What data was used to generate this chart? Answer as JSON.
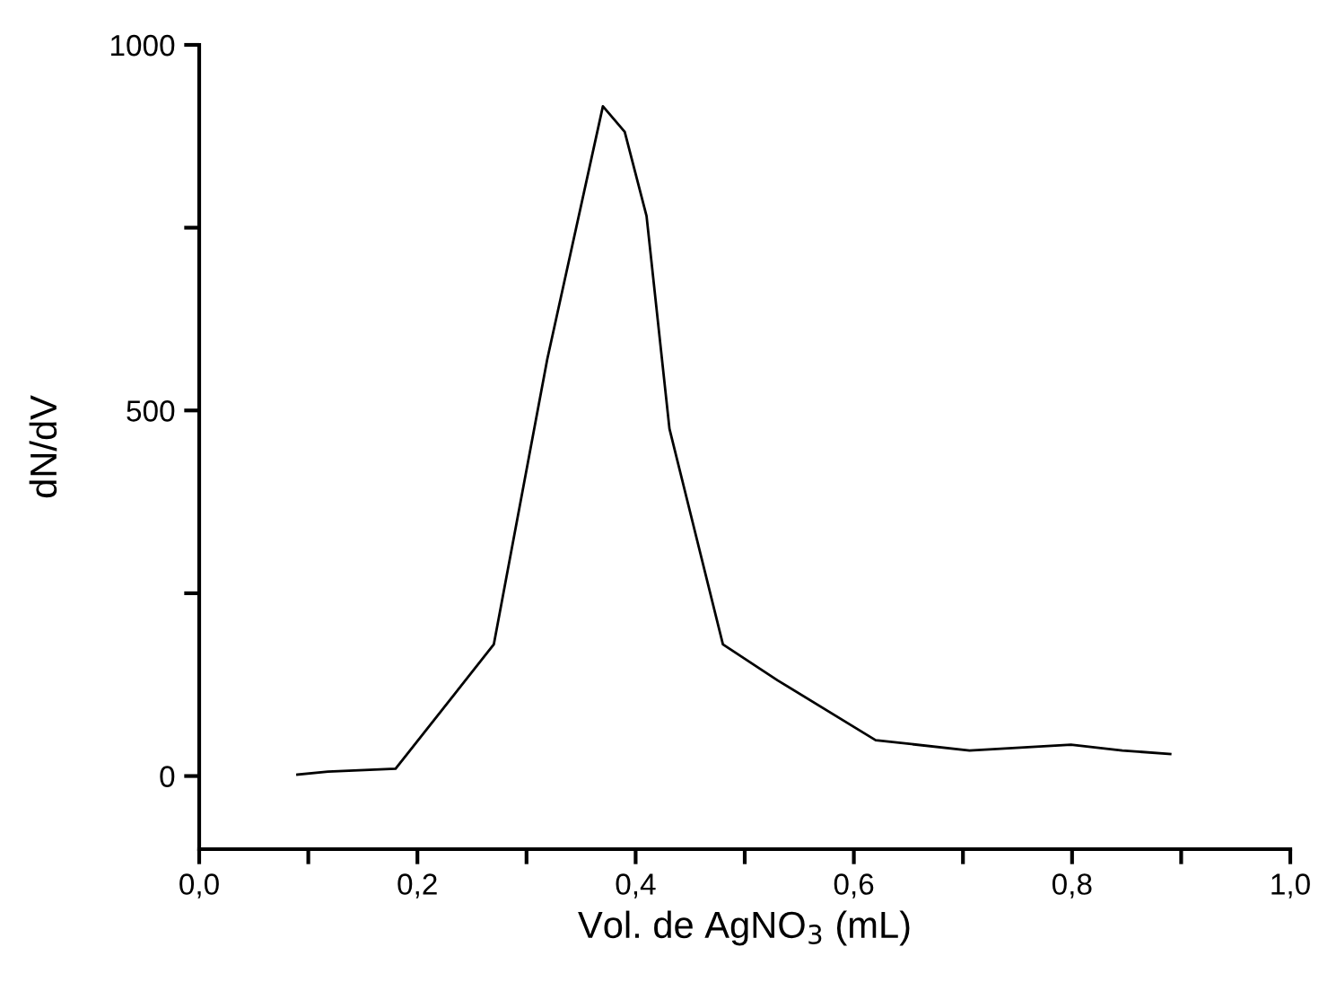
{
  "chart_data": {
    "type": "line",
    "xlabel": "Vol. de AgNO$_{3}$ (mL)",
    "ylabel": "dN/dV",
    "x": [
      0.09,
      0.118,
      0.18,
      0.27,
      0.319,
      0.328,
      0.37,
      0.39,
      0.41,
      0.431,
      0.48,
      0.53,
      0.62,
      0.706,
      0.799,
      0.846,
      0.89
    ],
    "series": [
      {
        "color": "#000000",
        "values": [
          2,
          6,
          10,
          180,
          570,
          631,
          916,
          881,
          766,
          475,
          180,
          131,
          49,
          35,
          43,
          35,
          30
        ]
      }
    ],
    "xlim": [
      0.0,
      1.0
    ],
    "ylim": [
      -100,
      1000
    ],
    "xticks": [
      {
        "value": 0.0,
        "label": "0,0"
      },
      {
        "value": 0.1,
        "label": null
      },
      {
        "value": 0.2,
        "label": "0,2"
      },
      {
        "value": 0.3,
        "label": null
      },
      {
        "value": 0.4,
        "label": "0,4"
      },
      {
        "value": 0.5,
        "label": null
      },
      {
        "value": 0.6,
        "label": "0,6"
      },
      {
        "value": 0.7,
        "label": null
      },
      {
        "value": 0.8,
        "label": "0,8"
      },
      {
        "value": 0.9,
        "label": null
      },
      {
        "value": 1.0,
        "label": "1,0"
      }
    ],
    "yticks": [
      0,
      {
        "value": 250,
        "label": null
      },
      500,
      {
        "value": 750,
        "label": null
      },
      1000
    ],
    "grid": false,
    "marker": "none",
    "line_style": "solid"
  }
}
